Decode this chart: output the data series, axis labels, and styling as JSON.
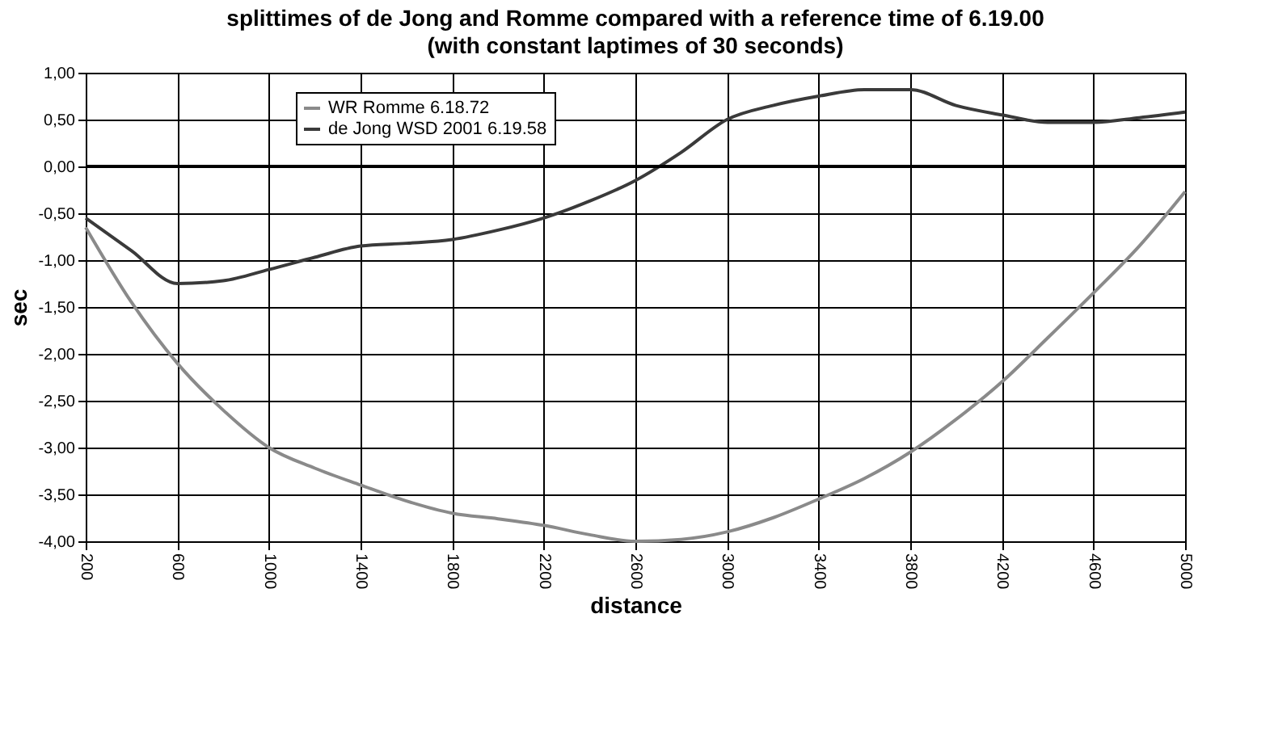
{
  "chart_data": {
    "type": "line",
    "title": "splittimes of de Jong and Romme compared with a reference time of 6.19.00",
    "subtitle": "(with constant laptimes of 30 seconds)",
    "xlabel": "distance",
    "ylabel": "sec",
    "x": [
      200,
      400,
      600,
      800,
      1000,
      1200,
      1400,
      1600,
      1800,
      2000,
      2200,
      2400,
      2600,
      2800,
      3000,
      3200,
      3400,
      3600,
      3800,
      4000,
      4200,
      4400,
      4600,
      4800,
      5000
    ],
    "series": [
      {
        "name": "WR Romme 6.18.72",
        "color": "#8a8a8a",
        "values": [
          -0.65,
          -1.45,
          -2.1,
          -2.6,
          -3.0,
          -3.22,
          -3.4,
          -3.57,
          -3.7,
          -3.76,
          -3.83,
          -3.93,
          -4.0,
          -3.98,
          -3.9,
          -3.75,
          -3.55,
          -3.33,
          -3.05,
          -2.7,
          -2.3,
          -1.83,
          -1.35,
          -0.85,
          -0.27
        ]
      },
      {
        "name": "de Jong WSD 2001 6.19.58",
        "color": "#3a3a3a",
        "values": [
          -0.55,
          -0.9,
          -1.25,
          -1.22,
          -1.1,
          -0.97,
          -0.85,
          -0.82,
          -0.78,
          -0.68,
          -0.55,
          -0.37,
          -0.15,
          0.15,
          0.5,
          0.65,
          0.75,
          0.82,
          0.82,
          0.65,
          0.55,
          0.47,
          0.47,
          0.52,
          0.58
        ]
      }
    ],
    "xlim": [
      200,
      5000
    ],
    "xticks": [
      200,
      600,
      1000,
      1400,
      1800,
      2200,
      2600,
      3000,
      3400,
      3800,
      4200,
      4600,
      5000
    ],
    "ylim": [
      -4,
      1
    ],
    "yticks": [
      {
        "value": 1,
        "label": "1,00"
      },
      {
        "value": 0.5,
        "label": "0,50"
      },
      {
        "value": 0,
        "label": "0,00"
      },
      {
        "value": -0.5,
        "label": "-0,50"
      },
      {
        "value": -1,
        "label": "-1,00"
      },
      {
        "value": -1.5,
        "label": "-1,50"
      },
      {
        "value": -2,
        "label": "-2,00"
      },
      {
        "value": -2.5,
        "label": "-2,50"
      },
      {
        "value": -3,
        "label": "-3,00"
      },
      {
        "value": -3.5,
        "label": "-3,50"
      },
      {
        "value": -4,
        "label": "-4,00"
      }
    ],
    "ref_lines": [
      {
        "axis": "y",
        "value": 0,
        "color": "#000000"
      }
    ],
    "grid": true,
    "legend": "top left",
    "marker": "none",
    "line_style": "solid"
  }
}
